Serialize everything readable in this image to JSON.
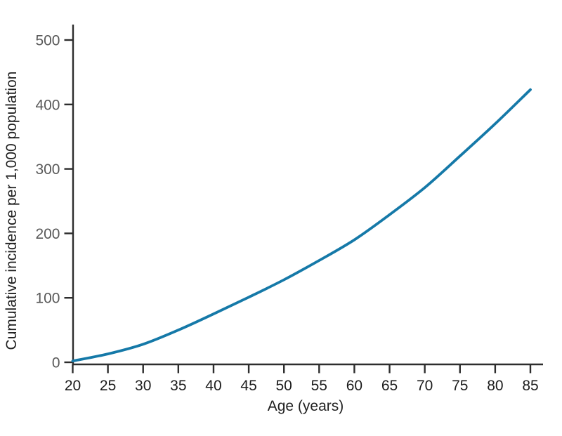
{
  "chart_data": {
    "type": "line",
    "title": "",
    "xlabel": "Age (years)",
    "ylabel": "Cumulative incidence per 1,000 population",
    "x": [
      20,
      25,
      30,
      35,
      40,
      45,
      50,
      55,
      60,
      65,
      70,
      75,
      80,
      85
    ],
    "y": [
      2,
      13,
      28,
      50,
      75,
      101,
      128,
      158,
      190,
      229,
      271,
      320,
      370,
      423
    ],
    "x_ticks": [
      20,
      25,
      30,
      35,
      40,
      45,
      50,
      55,
      60,
      65,
      70,
      75,
      80,
      85
    ],
    "y_ticks": [
      0,
      100,
      200,
      300,
      400,
      500
    ],
    "xlim": [
      20,
      85
    ],
    "ylim": [
      0,
      500
    ],
    "grid": false,
    "legend_position": "none",
    "series_name": "Cumulative incidence",
    "line_color": "#1579a8",
    "axis_color": "#2d2d2d",
    "x_tick_label_color": "#1c1c1c",
    "y_tick_label_color": "#595959"
  }
}
